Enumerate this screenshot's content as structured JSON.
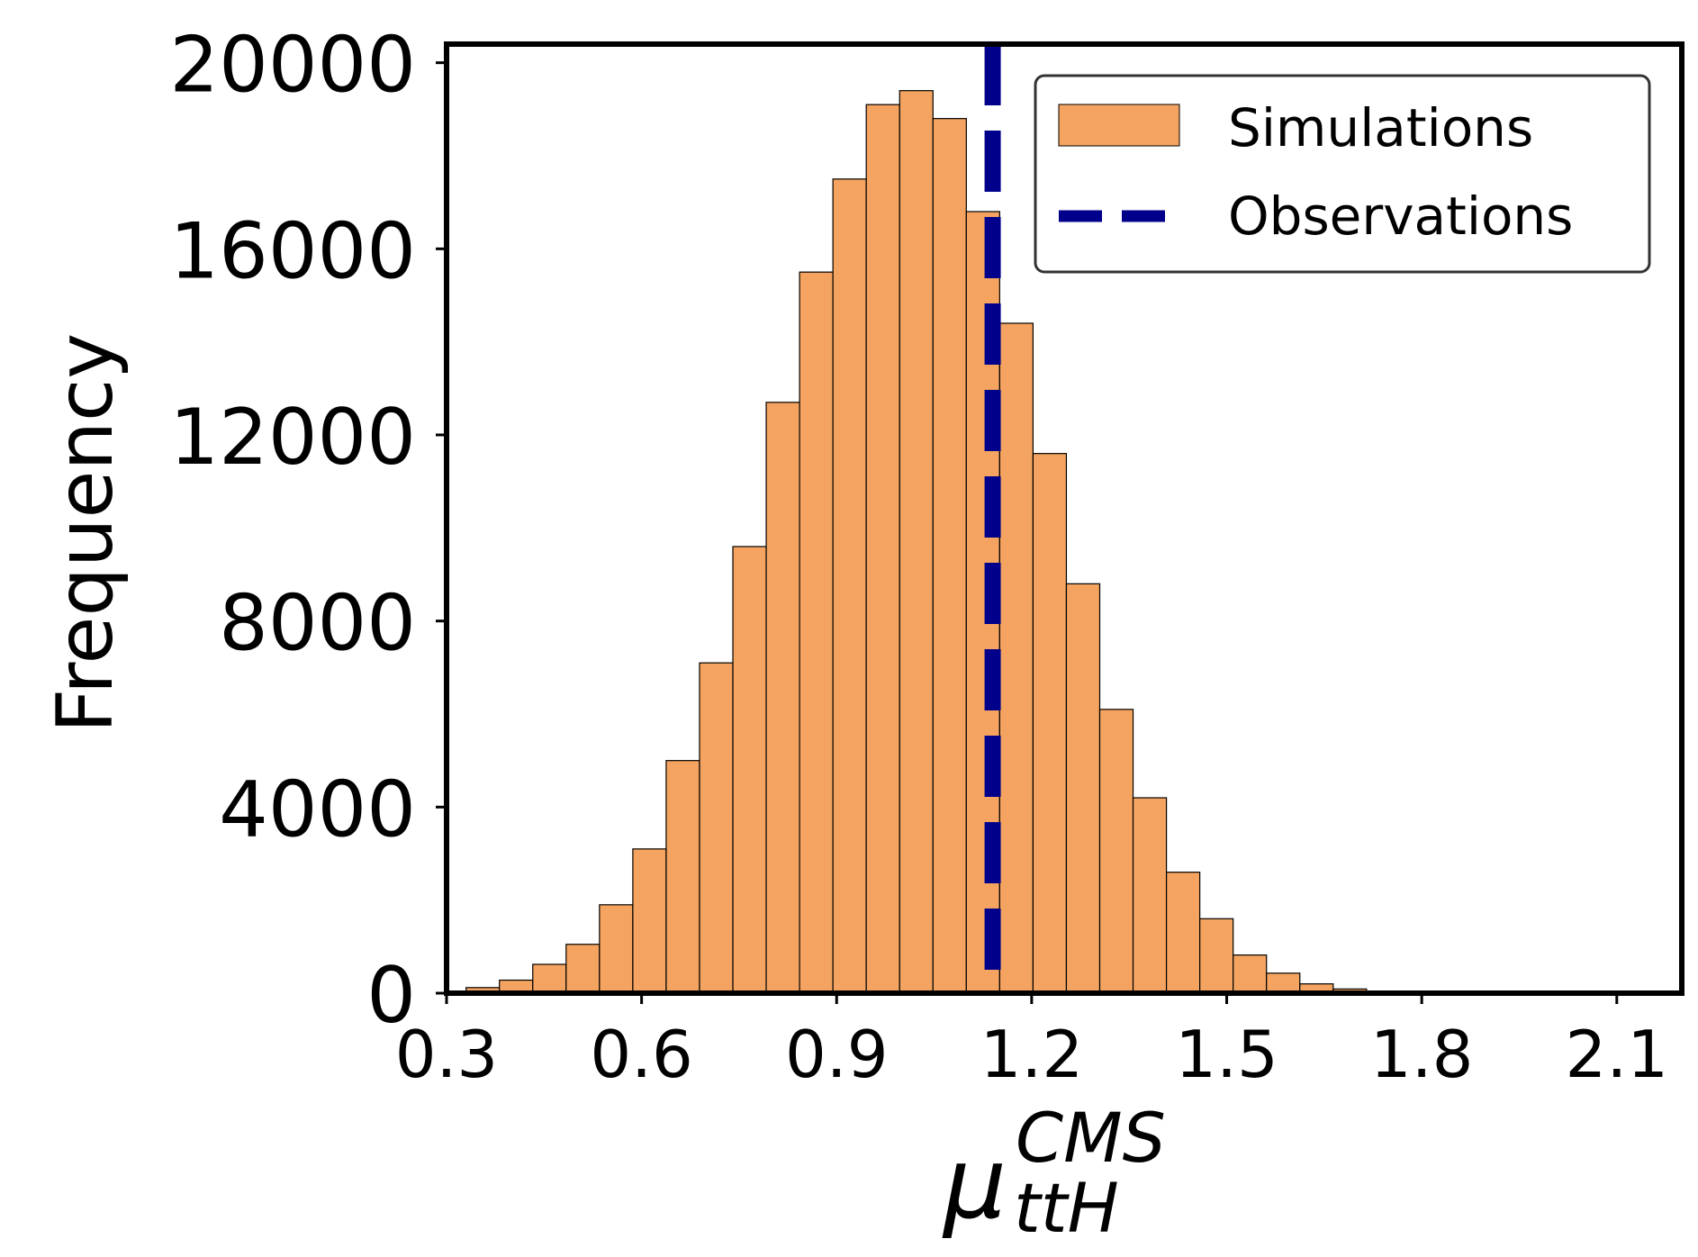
{
  "chart_data": {
    "type": "bar",
    "subtype": "histogram",
    "xlabel": {
      "base": "μ",
      "superscript": "CMS",
      "subscript": "ttH"
    },
    "ylabel": "Frequency",
    "xlim": [
      0.3,
      2.2
    ],
    "ylim": [
      0,
      20400
    ],
    "xticks": [
      0.3,
      0.6,
      0.9,
      1.2,
      1.5,
      1.8,
      2.1
    ],
    "xtick_labels": [
      "0.3",
      "0.6",
      "0.9",
      "1.2",
      "1.5",
      "1.8",
      "2.1"
    ],
    "yticks": [
      0,
      4000,
      8000,
      12000,
      16000,
      20000
    ],
    "ytick_labels": [
      "0",
      "4000",
      "8000",
      "12000",
      "16000",
      "20000"
    ],
    "grid": false,
    "series": [
      {
        "name": "Simulations",
        "color": "#f4a460",
        "edge_color": "#000000",
        "bin_start": 0.33,
        "bin_width": 0.0513,
        "values": [
          120,
          280,
          620,
          1050,
          1900,
          3100,
          5000,
          7100,
          9600,
          12700,
          15500,
          17500,
          19100,
          19400,
          18800,
          16800,
          14400,
          11600,
          8800,
          6100,
          4200,
          2600,
          1600,
          820,
          430,
          200,
          90,
          40,
          20,
          10,
          5,
          3,
          2,
          1,
          1,
          1
        ]
      },
      {
        "name": "Observations",
        "kind": "vline",
        "x": 1.14,
        "color": "#00008b",
        "style": "dashed"
      }
    ],
    "legend": {
      "position": "top-right",
      "entries": [
        "Simulations",
        "Observations"
      ]
    }
  }
}
